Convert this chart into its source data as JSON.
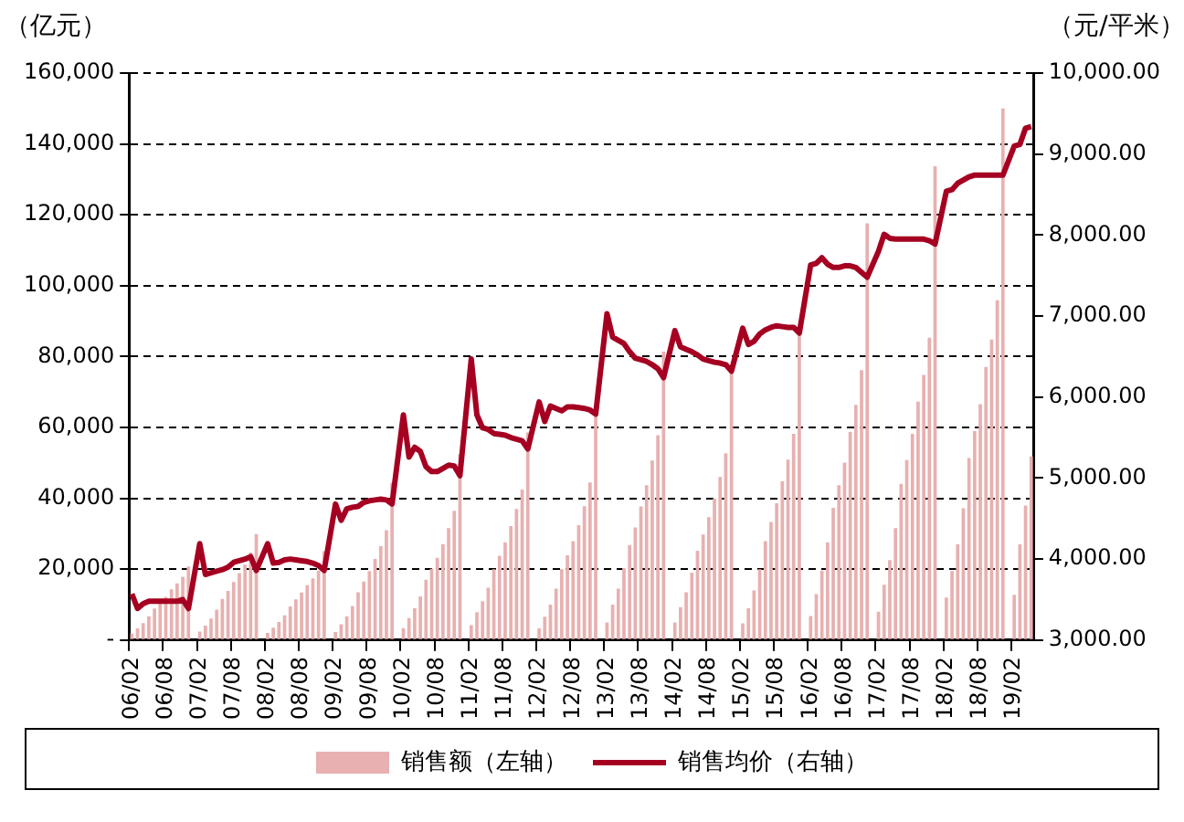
{
  "chart_data": {
    "type": "bar",
    "ylabel": "（亿元）",
    "y2label": "（元/平米）",
    "categories": [
      "06/02",
      null,
      null,
      null,
      null,
      null,
      "06/08",
      null,
      null,
      null,
      null,
      null,
      "07/02",
      null,
      null,
      null,
      null,
      null,
      "07/08",
      null,
      null,
      null,
      null,
      null,
      "08/02",
      null,
      null,
      null,
      null,
      null,
      "08/08",
      null,
      null,
      null,
      null,
      null,
      "09/02",
      null,
      null,
      null,
      null,
      null,
      "09/08",
      null,
      null,
      null,
      null,
      null,
      "10/02",
      null,
      null,
      null,
      null,
      null,
      "10/08",
      null,
      null,
      null,
      null,
      null,
      "11/02",
      null,
      null,
      null,
      null,
      null,
      "11/08",
      null,
      null,
      null,
      null,
      null,
      "12/02",
      null,
      null,
      null,
      null,
      null,
      "12/08",
      null,
      null,
      null,
      null,
      null,
      "13/02",
      null,
      null,
      null,
      null,
      null,
      "13/08",
      null,
      null,
      null,
      null,
      null,
      "14/02",
      null,
      null,
      null,
      null,
      null,
      "14/08",
      null,
      null,
      null,
      null,
      null,
      "15/02",
      null,
      null,
      null,
      null,
      null,
      "15/08",
      null,
      null,
      null,
      null,
      null,
      "16/02",
      null,
      null,
      null,
      null,
      null,
      "16/08",
      null,
      null,
      null,
      null,
      null,
      "17/02",
      null,
      null,
      null,
      null,
      null,
      "17/08",
      null,
      null,
      null,
      null,
      null,
      "18/02",
      null,
      null,
      null,
      null,
      null,
      "18/08",
      null,
      null,
      null,
      null,
      null,
      "19/02",
      null,
      null,
      null
    ],
    "series": [
      {
        "name": "销售额（左轴）",
        "color": "#e8b0b0",
        "values": [
          1800,
          3300,
          4800,
          6700,
          8900,
          10500,
          12200,
          14300,
          16000,
          17900,
          20800,
          null,
          2400,
          4100,
          6100,
          8600,
          11600,
          13900,
          16400,
          18900,
          21300,
          24700,
          29900,
          null,
          2000,
          3500,
          5100,
          7000,
          9500,
          11500,
          13400,
          15500,
          17400,
          19600,
          25100,
          null,
          2300,
          4500,
          6700,
          9600,
          13500,
          16500,
          19500,
          22900,
          26500,
          31000,
          44400,
          null,
          3400,
          6200,
          9000,
          12300,
          17000,
          20100,
          23200,
          27100,
          31600,
          36500,
          52500,
          null,
          4200,
          7900,
          11000,
          14800,
          20000,
          23800,
          27600,
          32200,
          37000,
          42500,
          58600,
          null,
          3300,
          6600,
          10000,
          14500,
          20000,
          23900,
          27900,
          32400,
          37800,
          44500,
          64500,
          null,
          5000,
          10000,
          14500,
          20300,
          26800,
          31800,
          37700,
          43700,
          50700,
          57800,
          81400,
          null,
          5000,
          9300,
          13500,
          19000,
          25200,
          29800,
          34700,
          40000,
          46000,
          52700,
          76300,
          null,
          4700,
          9000,
          14000,
          20000,
          27900,
          33300,
          38600,
          44800,
          50900,
          58200,
          87300,
          null,
          6800,
          13000,
          19600,
          27600,
          37300,
          43700,
          50100,
          58800,
          66400,
          76200,
          117600,
          null,
          8000,
          15600,
          22600,
          31600,
          44100,
          50800,
          58200,
          67300,
          74800,
          85300,
          133700,
          null,
          12000,
          19500,
          27000,
          37200,
          51400,
          59000,
          66600,
          77100,
          84800,
          95900,
          150000,
          null,
          12800,
          27000,
          38000,
          51800
        ]
      },
      {
        "name": "销售均价（右轴）",
        "type": "line",
        "axis": "y2",
        "color": "#a50021",
        "values": [
          3570,
          3390,
          3450,
          3480,
          3480,
          3480,
          3480,
          3480,
          3480,
          3500,
          3390,
          null,
          4190,
          3810,
          3830,
          3850,
          3870,
          3900,
          3960,
          3980,
          4000,
          4030,
          3860,
          null,
          4190,
          3950,
          3960,
          3990,
          4000,
          3990,
          3980,
          3970,
          3950,
          3920,
          3860,
          null,
          4680,
          4480,
          4620,
          4640,
          4650,
          4700,
          4720,
          4730,
          4740,
          4730,
          4680,
          null,
          5780,
          5260,
          5380,
          5330,
          5140,
          5080,
          5080,
          5120,
          5160,
          5150,
          5030,
          null,
          6470,
          5780,
          5620,
          5600,
          5550,
          5540,
          5530,
          5500,
          5480,
          5460,
          5360,
          null,
          5940,
          5700,
          5890,
          5860,
          5830,
          5880,
          5880,
          5870,
          5860,
          5840,
          5790,
          null,
          7030,
          6740,
          6700,
          6660,
          6560,
          6480,
          6460,
          6440,
          6400,
          6350,
          6240,
          null,
          6820,
          6620,
          6590,
          6560,
          6520,
          6470,
          6450,
          6430,
          6420,
          6400,
          6320,
          null,
          6850,
          6650,
          6690,
          6780,
          6830,
          6860,
          6880,
          6870,
          6860,
          6860,
          6790,
          null,
          7630,
          7650,
          7720,
          7640,
          7600,
          7600,
          7620,
          7620,
          7600,
          7540,
          7480,
          null,
          7800,
          8010,
          7960,
          7950,
          7950,
          7950,
          7950,
          7950,
          7950,
          7930,
          7890,
          null,
          8540,
          8560,
          8640,
          8680,
          8720,
          8740,
          8740,
          8740,
          8740,
          8740,
          8740,
          null,
          9100,
          9120,
          9320,
          9340
        ]
      }
    ],
    "ylim": [
      0,
      160000
    ],
    "yticks": [
      {
        "value": 0,
        "label": "-"
      },
      {
        "value": 20000,
        "label": "20,000"
      },
      {
        "value": 40000,
        "label": "40,000"
      },
      {
        "value": 60000,
        "label": "60,000"
      },
      {
        "value": 80000,
        "label": "80,000"
      },
      {
        "value": 100000,
        "label": "100,000"
      },
      {
        "value": 120000,
        "label": "120,000"
      },
      {
        "value": 140000,
        "label": "140,000"
      },
      {
        "value": 160000,
        "label": "160,000"
      }
    ],
    "y2lim": [
      3000,
      10000
    ],
    "y2ticks": [
      {
        "value": 3000,
        "label": "3,000.00"
      },
      {
        "value": 4000,
        "label": "4,000.00"
      },
      {
        "value": 5000,
        "label": "5,000.00"
      },
      {
        "value": 6000,
        "label": "6,000.00"
      },
      {
        "value": 7000,
        "label": "7,000.00"
      },
      {
        "value": 8000,
        "label": "8,000.00"
      },
      {
        "value": 9000,
        "label": "9,000.00"
      },
      {
        "value": 10000,
        "label": "10,000.00"
      }
    ],
    "grid": "y",
    "legend": "bottom",
    "marker": "none",
    "line_style": "solid"
  }
}
